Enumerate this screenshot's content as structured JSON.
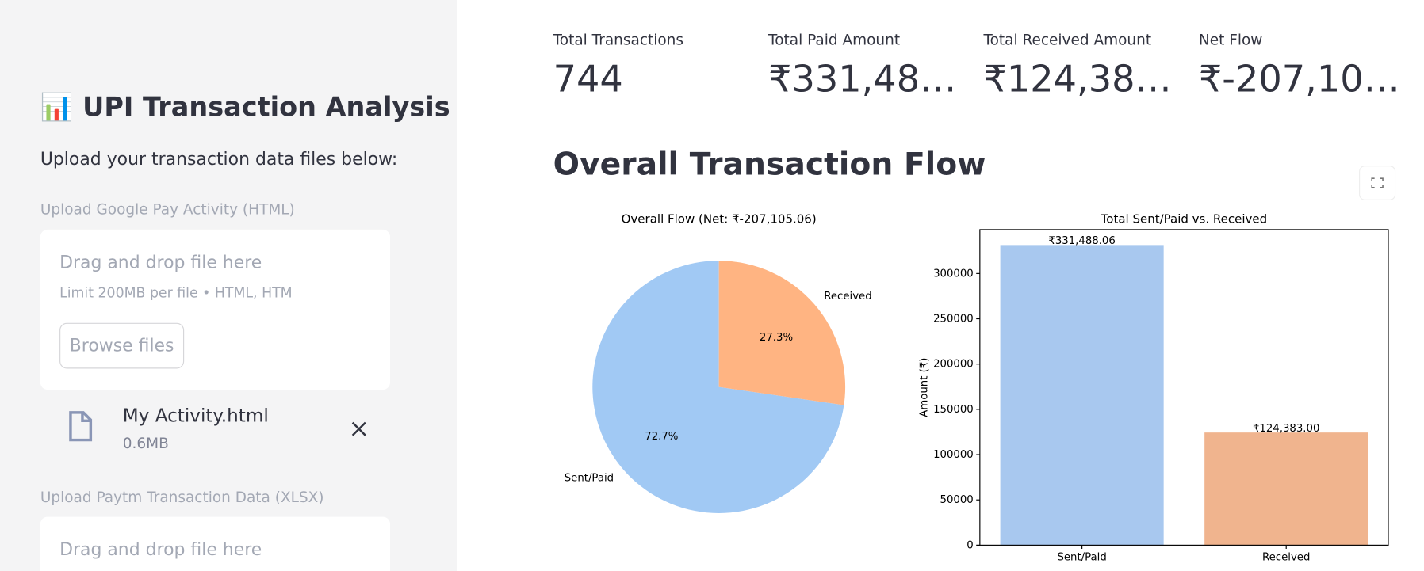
{
  "sidebar": {
    "title": "📊 UPI Transaction Analysis",
    "subtitle": "Upload your transaction data files below:",
    "uploaders": [
      {
        "label": "Upload Google Pay Activity (HTML)",
        "drop_text": "Drag and drop file here",
        "limit": "Limit 200MB per file • HTML, HTM",
        "button": "Browse files",
        "file": {
          "name": "My Activity.html",
          "size": "0.6MB"
        }
      },
      {
        "label": "Upload Paytm Transaction Data (XLSX)",
        "drop_text": "Drag and drop file here"
      }
    ]
  },
  "metrics": [
    {
      "label": "Total Transactions",
      "value": "744"
    },
    {
      "label": "Total Paid Amount",
      "value": "₹331,48…"
    },
    {
      "label": "Total Received Amount",
      "value": "₹124,38…"
    },
    {
      "label": "Net Flow",
      "value": "₹-207,10…"
    }
  ],
  "section_title": "Overall Transaction Flow",
  "chart_data": [
    {
      "type": "pie",
      "title": "Overall Flow (Net: ₹-207,105.06)",
      "categories": [
        "Sent/Paid",
        "Received"
      ],
      "values": [
        72.7,
        27.3
      ],
      "value_labels": [
        "72.7%",
        "27.3%"
      ],
      "colors": [
        "#a1c9f4",
        "#ffb482"
      ]
    },
    {
      "type": "bar",
      "title": "Total Sent/Paid vs. Received",
      "categories": [
        "Sent/Paid",
        "Received"
      ],
      "values": [
        331488.06,
        124383.0
      ],
      "value_labels": [
        "₹331,488.06",
        "₹124,383.00"
      ],
      "colors": [
        "#a8c8ef",
        "#f0b48e"
      ],
      "ylabel": "Amount (₹)",
      "ylim": [
        0,
        348500
      ],
      "yticks": [
        0,
        50000,
        100000,
        150000,
        200000,
        250000,
        300000
      ]
    }
  ]
}
